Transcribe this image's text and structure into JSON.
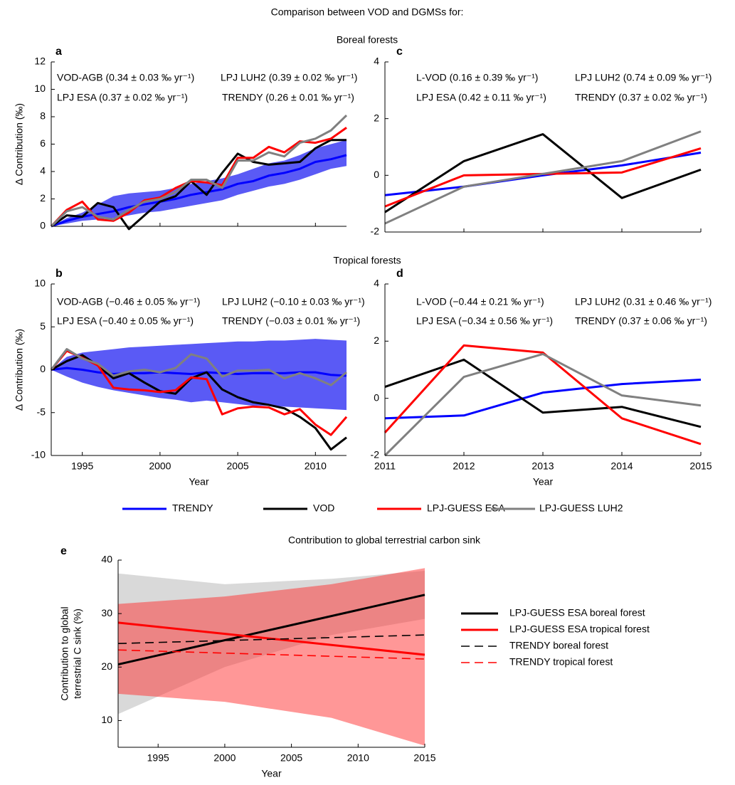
{
  "title": "Comparison between VOD and DGMSs for:",
  "sections": [
    "Boreal forests",
    "Tropical forests"
  ],
  "chart_data": [
    {
      "type": "line",
      "label": "a",
      "ylabel": "Δ Contribution (‰)",
      "x": [
        1993,
        1994,
        1995,
        1996,
        1997,
        1998,
        1999,
        2000,
        2001,
        2002,
        2003,
        2004,
        2005,
        2006,
        2007,
        2008,
        2009,
        2010,
        2011,
        2012
      ],
      "xlim": [
        1993,
        2012
      ],
      "xticks": [
        1995,
        2000,
        2005,
        2010
      ],
      "xticklabels": false,
      "ylim": [
        0,
        12
      ],
      "yticks": [
        0,
        2,
        4,
        6,
        8,
        10,
        12
      ],
      "annotations": [
        "VOD-AGB (0.34 ± 0.03 ‰ yr⁻¹)",
        "LPJ LUH2 (0.39 ± 0.02 ‰ yr⁻¹)",
        "LPJ ESA (0.37 ± 0.02 ‰ yr⁻¹)",
        "TRENDY (0.26 ± 0.01 ‰ yr⁻¹)"
      ],
      "series": [
        {
          "name": "TRENDY",
          "color": "#0000ff",
          "values": [
            0,
            0.4,
            0.7,
            0.9,
            1.1,
            1.4,
            1.6,
            1.8,
            2.0,
            2.3,
            2.5,
            2.7,
            3.1,
            3.3,
            3.7,
            3.9,
            4.2,
            4.7,
            4.9,
            5.2
          ],
          "band_color": "#5a5af5",
          "band_opacity": 1,
          "band_lower": [
            0,
            0.2,
            0.4,
            0.5,
            0.6,
            0.8,
            1.0,
            1.1,
            1.3,
            1.5,
            1.7,
            1.9,
            2.3,
            2.6,
            2.9,
            3.1,
            3.4,
            3.8,
            4.2,
            4.4
          ],
          "band_upper": [
            0,
            0.6,
            1.0,
            1.6,
            2.2,
            2.4,
            2.5,
            2.6,
            2.8,
            3.1,
            3.3,
            3.5,
            3.8,
            4.2,
            4.6,
            4.8,
            5.2,
            5.7,
            6.0,
            6.3
          ]
        },
        {
          "name": "VOD",
          "color": "#000000",
          "values": [
            0,
            0.8,
            0.7,
            1.7,
            1.4,
            -0.2,
            0.8,
            1.8,
            2.2,
            3.3,
            2.3,
            3.9,
            5.3,
            4.7,
            4.5,
            4.6,
            4.7,
            5.7,
            6.3,
            6.3
          ]
        },
        {
          "name": "LPJ-GUESS ESA",
          "color": "#ff0000",
          "values": [
            0,
            1.2,
            1.8,
            0.5,
            0.4,
            1.0,
            1.9,
            2.1,
            2.8,
            3.3,
            3.2,
            3.0,
            5.0,
            5.0,
            5.8,
            5.4,
            6.2,
            6.1,
            6.4,
            7.2
          ]
        },
        {
          "name": "LPJ-GUESS LUH2",
          "color": "#808080",
          "values": [
            0,
            1.1,
            1.4,
            0.7,
            0.5,
            1.2,
            1.8,
            2.0,
            2.5,
            3.4,
            3.4,
            2.8,
            4.8,
            4.8,
            5.4,
            5.1,
            6.1,
            6.4,
            7.0,
            8.1
          ]
        }
      ]
    },
    {
      "type": "line",
      "label": "b",
      "ylabel": "Δ Contribution (‰)",
      "xlabel": "Year",
      "x": [
        1993,
        1994,
        1995,
        1996,
        1997,
        1998,
        1999,
        2000,
        2001,
        2002,
        2003,
        2004,
        2005,
        2006,
        2007,
        2008,
        2009,
        2010,
        2011,
        2012
      ],
      "xlim": [
        1993,
        2012
      ],
      "xticks": [
        1995,
        2000,
        2005,
        2010
      ],
      "ylim": [
        -10,
        10
      ],
      "yticks": [
        -10,
        -5,
        0,
        5,
        10
      ],
      "annotations": [
        "VOD-AGB (−0.46 ± 0.05 ‰ yr⁻¹)",
        "LPJ LUH2 (−0.10 ± 0.03 ‰ yr⁻¹)",
        "LPJ ESA (−0.40 ± 0.05 ‰ yr⁻¹)",
        "TRENDY (−0.03 ± 0.01 ‰ yr⁻¹)"
      ],
      "series": [
        {
          "name": "TRENDY",
          "color": "#0000ff",
          "values": [
            0,
            0.2,
            0,
            -0.3,
            -0.5,
            -0.4,
            -0.4,
            -0.3,
            -0.4,
            -0.5,
            -0.3,
            -0.4,
            -0.5,
            -0.4,
            -0.4,
            -0.4,
            -0.3,
            -0.3,
            -0.6,
            -0.7
          ],
          "band_color": "#5a5af5",
          "band_opacity": 1,
          "band_lower": [
            0,
            -0.8,
            -1.5,
            -2,
            -2.4,
            -2.7,
            -3,
            -3.3,
            -3.5,
            -3.8,
            -3.6,
            -3.8,
            -4,
            -4.2,
            -4.2,
            -4.3,
            -4.4,
            -4.5,
            -4.6,
            -4.7
          ],
          "band_upper": [
            0,
            1.5,
            2,
            2.2,
            2.4,
            2.6,
            2.7,
            2.8,
            2.9,
            3.0,
            3.1,
            3.2,
            3.3,
            3.3,
            3.4,
            3.4,
            3.5,
            3.6,
            3.5,
            3.4
          ]
        },
        {
          "name": "VOD",
          "color": "#000000",
          "values": [
            0,
            1,
            1.7,
            0.5,
            -1,
            -0.4,
            -1.5,
            -2.5,
            -2.8,
            -1,
            -0.3,
            -2.3,
            -3.2,
            -3.8,
            -4.1,
            -4.5,
            -5.5,
            -6.8,
            -9.3,
            -7.9
          ]
        },
        {
          "name": "LPJ-GUESS ESA",
          "color": "#ff0000",
          "values": [
            0,
            2.2,
            1.4,
            0.5,
            -2.1,
            -2.3,
            -2.4,
            -2.6,
            -2.4,
            -0.9,
            -1.1,
            -5.2,
            -4.5,
            -4.3,
            -4.4,
            -5.2,
            -4.6,
            -6.4,
            -7.6,
            -5.5
          ]
        },
        {
          "name": "LPJ-GUESS LUH2",
          "color": "#808080",
          "values": [
            0,
            2.4,
            1.3,
            0.7,
            -0.7,
            -0.2,
            0,
            -0.3,
            0.2,
            1.8,
            1.3,
            -0.8,
            -0.1,
            -0.1,
            0,
            -1,
            -0.4,
            -1,
            -1.8,
            -0.3
          ]
        }
      ]
    },
    {
      "type": "line",
      "label": "c",
      "x": [
        2011,
        2012,
        2013,
        2014,
        2015
      ],
      "xlim": [
        2011,
        2015
      ],
      "xticks": [
        2011,
        2012,
        2013,
        2014,
        2015
      ],
      "xticklabels": false,
      "ylim": [
        -2,
        4
      ],
      "yticks": [
        -2,
        0,
        2,
        4
      ],
      "annotations": [
        "L-VOD (0.16 ± 0.39 ‰ yr⁻¹)",
        "LPJ LUH2 (0.74 ± 0.09 ‰ yr⁻¹)",
        "LPJ ESA (0.42 ± 0.11 ‰ yr⁻¹)",
        "TRENDY (0.37 ± 0.02 ‰ yr⁻¹)"
      ],
      "series": [
        {
          "name": "TRENDY",
          "color": "#0000ff",
          "values": [
            -0.7,
            -0.4,
            0,
            0.35,
            0.8
          ]
        },
        {
          "name": "VOD",
          "color": "#000000",
          "values": [
            -1.3,
            0.5,
            1.45,
            -0.8,
            0.2
          ]
        },
        {
          "name": "LPJ-GUESS ESA",
          "color": "#ff0000",
          "values": [
            -1.1,
            0,
            0.05,
            0.1,
            0.95
          ]
        },
        {
          "name": "LPJ-GUESS LUH2",
          "color": "#808080",
          "values": [
            -1.7,
            -0.4,
            0.05,
            0.5,
            1.55
          ]
        }
      ]
    },
    {
      "type": "line",
      "label": "d",
      "xlabel": "Year",
      "x": [
        2011,
        2012,
        2013,
        2014,
        2015
      ],
      "xlim": [
        2011,
        2015
      ],
      "xticks": [
        2011,
        2012,
        2013,
        2014,
        2015
      ],
      "ylim": [
        -2,
        4
      ],
      "yticks": [
        -2,
        0,
        2,
        4
      ],
      "annotations": [
        "L-VOD (−0.44 ± 0.21 ‰ yr⁻¹)",
        "LPJ LUH2 (0.31 ± 0.46 ‰ yr⁻¹)",
        "LPJ ESA (−0.34 ± 0.56 ‰ yr⁻¹)",
        "TRENDY (0.37 ± 0.06 ‰ yr⁻¹)"
      ],
      "series": [
        {
          "name": "TRENDY",
          "color": "#0000ff",
          "values": [
            -0.7,
            -0.6,
            0.2,
            0.5,
            0.65
          ]
        },
        {
          "name": "VOD",
          "color": "#000000",
          "values": [
            0.4,
            1.35,
            -0.5,
            -0.3,
            -1
          ]
        },
        {
          "name": "LPJ-GUESS ESA",
          "color": "#ff0000",
          "values": [
            -1.2,
            1.85,
            1.6,
            -0.7,
            -1.6
          ]
        },
        {
          "name": "LPJ-GUESS LUH2",
          "color": "#808080",
          "values": [
            -2,
            0.75,
            1.55,
            0.1,
            -0.25
          ]
        }
      ]
    },
    {
      "type": "line",
      "label": "e",
      "title": "Contribution to global terrestrial carbon sink",
      "ylabel": [
        "Contribution to global",
        "terrestrial C sink (%)"
      ],
      "xlabel": "Year",
      "legend": "right",
      "x": [
        1992,
        2015
      ],
      "xlim": [
        1992,
        2015
      ],
      "xticks": [
        1995,
        2000,
        2005,
        2010,
        2015
      ],
      "ylim": [
        5,
        40
      ],
      "yticks": [
        10,
        20,
        30,
        40
      ],
      "band_x": [
        1992,
        2000,
        2008,
        2015
      ],
      "series": [
        {
          "name": "LPJ-GUESS ESA boreal forest",
          "color": "#000000",
          "values": [
            20.5,
            33.5
          ],
          "band_color": "#808080",
          "band_opacity": 0.3,
          "band_lower": [
            11.2,
            20,
            26,
            29
          ],
          "band_upper": [
            37.5,
            35.5,
            36.5,
            38
          ]
        },
        {
          "name": "LPJ-GUESS ESA tropical forest",
          "color": "#ff0000",
          "values": [
            28.3,
            22.3
          ],
          "band_color": "#ff3030",
          "band_opacity": 0.5,
          "band_lower": [
            15,
            13.5,
            10.5,
            5.3
          ],
          "band_upper": [
            31.8,
            33.2,
            35.5,
            38.5
          ]
        },
        {
          "name": "TRENDY boreal forest",
          "color": "#000000",
          "dash": true,
          "values": [
            24.4,
            26
          ]
        },
        {
          "name": "TRENDY tropical forest",
          "color": "#ff0000",
          "dash": true,
          "values": [
            23.2,
            21.5
          ]
        }
      ]
    }
  ]
}
